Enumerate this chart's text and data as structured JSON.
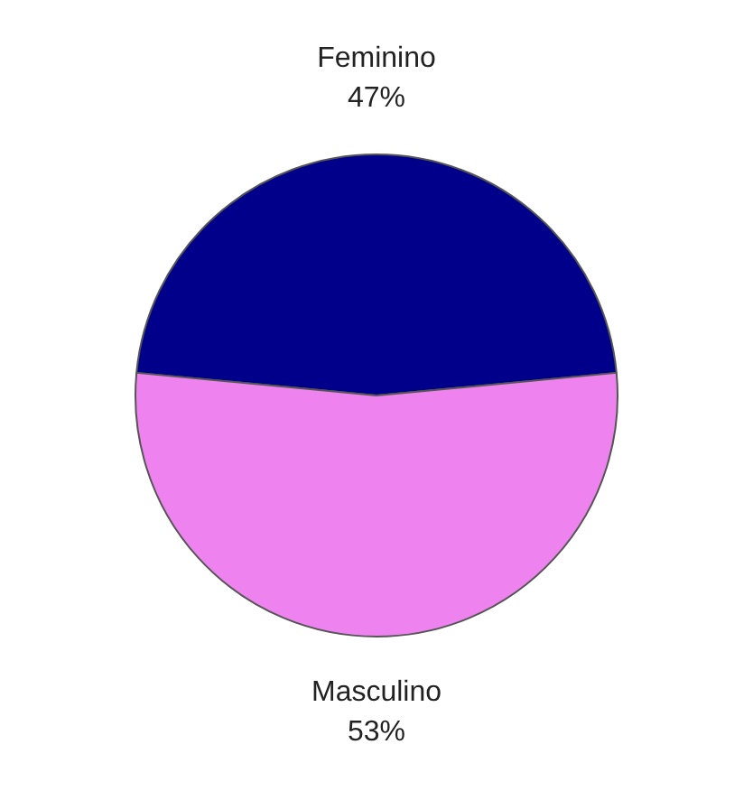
{
  "chart_data": {
    "type": "pie",
    "categories": [
      "Feminino",
      "Masculino"
    ],
    "values": [
      47,
      53
    ],
    "colors": [
      "#00008b",
      "#ee82ee"
    ],
    "value_labels": [
      "47%",
      "53%"
    ]
  }
}
